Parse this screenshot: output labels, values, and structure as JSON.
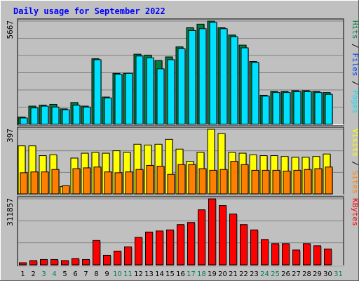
{
  "colors": {
    "background": "#c0c0c0",
    "panel": "#c0c0c0",
    "gridline": "#808080",
    "title": "#0000ff",
    "hits": "#008040",
    "files": "#0040ff",
    "pages": "#00e0ff",
    "visits": "#ffff00",
    "sites": "#ff8000",
    "kbytes": "#ff0000",
    "weekend_day": "#00805c",
    "weekday_day": "#000000"
  },
  "chart_data": {
    "type": "bar",
    "title": "Daily usage for September 2022",
    "categories": [
      "1",
      "2",
      "3",
      "4",
      "5",
      "6",
      "7",
      "8",
      "9",
      "10",
      "11",
      "12",
      "13",
      "14",
      "15",
      "16",
      "17",
      "18",
      "19",
      "20",
      "21",
      "22",
      "23",
      "24",
      "25",
      "26",
      "27",
      "28",
      "29",
      "30",
      "31"
    ],
    "weekend_days": [
      "3",
      "4",
      "10",
      "11",
      "17",
      "18",
      "24",
      "25",
      "31"
    ],
    "panels": [
      {
        "name": "pages-files-hits",
        "ymax_label": "5667",
        "ymax": 5667,
        "legend": [
          {
            "text": "Pages",
            "color": "#00e0ff"
          },
          {
            "text": " / ",
            "color": "#000000"
          },
          {
            "text": "Files",
            "color": "#0040ff"
          },
          {
            "text": " / ",
            "color": "#000000"
          },
          {
            "text": "Hits",
            "color": "#008040"
          }
        ],
        "series": [
          {
            "name": "Hits",
            "color": "#008040",
            "values": [
              400,
              1000,
              1050,
              1100,
              850,
              1200,
              1000,
              3600,
              1500,
              2800,
              2800,
              3850,
              3800,
              3500,
              3700,
              4250,
              5300,
              5500,
              5667,
              5300,
              4900,
              4350,
              3450,
              1600,
              1800,
              1800,
              1850,
              1850,
              1800,
              1750,
              0
            ]
          },
          {
            "name": "Pages",
            "color": "#00e0ff",
            "values": [
              350,
              900,
              1000,
              950,
              800,
              1050,
              950,
              3550,
              1450,
              2750,
              2800,
              3750,
              3650,
              3050,
              3550,
              4150,
              5150,
              5250,
              5600,
              5250,
              4800,
              4200,
              3400,
              1550,
              1750,
              1750,
              1800,
              1800,
              1750,
              1650,
              0
            ]
          }
        ]
      },
      {
        "name": "visits-sites",
        "ymax_label": "397",
        "ymax": 397,
        "legend": [
          {
            "text": "Sites",
            "color": "#ff8000"
          },
          {
            "text": " / ",
            "color": "#000000"
          },
          {
            "text": "Visits",
            "color": "#ffff00"
          }
        ],
        "series": [
          {
            "name": "Visits",
            "color": "#ffff00",
            "values": [
              295,
              295,
              235,
              240,
              45,
              220,
              250,
              255,
              250,
              265,
              255,
              305,
              300,
              305,
              335,
              275,
              200,
              255,
              397,
              370,
              255,
              250,
              240,
              235,
              235,
              230,
              225,
              225,
              230,
              245,
              0
            ]
          },
          {
            "name": "Sites",
            "color": "#ff8000",
            "values": [
              130,
              135,
              135,
              150,
              50,
              155,
              160,
              165,
              135,
              130,
              135,
              150,
              175,
              170,
              120,
              180,
              180,
              155,
              145,
              150,
              200,
              180,
              145,
              145,
              145,
              140,
              145,
              150,
              155,
              165,
              0
            ]
          }
        ]
      },
      {
        "name": "kbytes",
        "ymax_label": "311857",
        "ymax": 311857,
        "legend": [
          {
            "text": "KBytes",
            "color": "#ff0000"
          }
        ],
        "series": [
          {
            "name": "KBytes",
            "color": "#ff0000",
            "values": [
              10000,
              20000,
              25000,
              25000,
              20000,
              30000,
              25000,
              115000,
              45000,
              65000,
              85000,
              130000,
              155000,
              160000,
              165000,
              190000,
              200000,
              260000,
              311857,
              280000,
              240000,
              190000,
              165000,
              120000,
              100000,
              100000,
              70000,
              100000,
              90000,
              75000,
              0
            ]
          }
        ]
      }
    ]
  }
}
